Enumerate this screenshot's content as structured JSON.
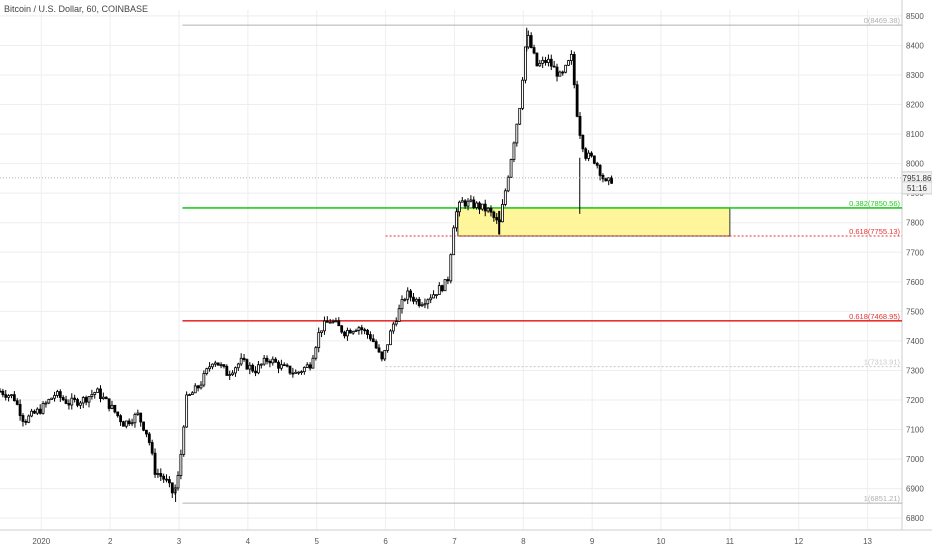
{
  "header": {
    "symbol_title": "Bitcoin / U.S. Dollar, 60, COINBASE"
  },
  "chart_data": {
    "type": "candlestick",
    "ylim": [
      6760,
      8520
    ],
    "y_ticks": [
      6800,
      6900,
      7000,
      7100,
      7200,
      7300,
      7400,
      7500,
      7600,
      7700,
      7800,
      7900,
      8000,
      8100,
      8200,
      8300,
      8400,
      8500
    ],
    "x_range": [
      0.4,
      13.5
    ],
    "x_ticks": [
      {
        "x": 1,
        "label": "2020"
      },
      {
        "x": 2,
        "label": "2"
      },
      {
        "x": 3,
        "label": "3"
      },
      {
        "x": 4,
        "label": "4"
      },
      {
        "x": 5,
        "label": "5"
      },
      {
        "x": 6,
        "label": "6"
      },
      {
        "x": 7,
        "label": "7"
      },
      {
        "x": 8,
        "label": "8"
      },
      {
        "x": 9,
        "label": "9"
      },
      {
        "x": 10,
        "label": "10"
      },
      {
        "x": 11,
        "label": "11"
      },
      {
        "x": 12,
        "label": "12"
      },
      {
        "x": 13,
        "label": "13"
      }
    ],
    "price_path": [
      [
        0.4,
        7230
      ],
      [
        0.6,
        7210
      ],
      [
        0.75,
        7130
      ],
      [
        1.0,
        7170
      ],
      [
        1.2,
        7220
      ],
      [
        1.4,
        7190
      ],
      [
        1.6,
        7200
      ],
      [
        1.8,
        7230
      ],
      [
        2.0,
        7180
      ],
      [
        2.2,
        7120
      ],
      [
        2.4,
        7150
      ],
      [
        2.55,
        7080
      ],
      [
        2.65,
        6960
      ],
      [
        2.8,
        6930
      ],
      [
        2.92,
        6880
      ],
      [
        3.0,
        6950
      ],
      [
        3.1,
        7200
      ],
      [
        3.3,
        7250
      ],
      [
        3.5,
        7340
      ],
      [
        3.7,
        7290
      ],
      [
        3.9,
        7330
      ],
      [
        4.1,
        7300
      ],
      [
        4.3,
        7340
      ],
      [
        4.5,
        7310
      ],
      [
        4.7,
        7290
      ],
      [
        4.9,
        7320
      ],
      [
        5.05,
        7440
      ],
      [
        5.2,
        7470
      ],
      [
        5.4,
        7430
      ],
      [
        5.6,
        7450
      ],
      [
        5.8,
        7410
      ],
      [
        5.95,
        7330
      ],
      [
        6.1,
        7450
      ],
      [
        6.3,
        7560
      ],
      [
        6.5,
        7530
      ],
      [
        6.7,
        7560
      ],
      [
        6.9,
        7600
      ],
      [
        7.0,
        7820
      ],
      [
        7.1,
        7870
      ],
      [
        7.3,
        7860
      ],
      [
        7.5,
        7840
      ],
      [
        7.65,
        7790
      ],
      [
        7.8,
        7990
      ],
      [
        7.95,
        8200
      ],
      [
        8.05,
        8440
      ],
      [
        8.2,
        8330
      ],
      [
        8.35,
        8350
      ],
      [
        8.55,
        8290
      ],
      [
        8.7,
        8360
      ],
      [
        8.8,
        8130
      ],
      [
        8.9,
        8030
      ],
      [
        9.05,
        8010
      ],
      [
        9.2,
        7930
      ],
      [
        9.3,
        7950
      ]
    ],
    "wick_extremes": {
      "high": 8460,
      "low": 6855,
      "spike_low": 7760,
      "spike_low_x": 7.65,
      "spike2_low": 7830,
      "spike2_low_x": 8.82
    },
    "fib_levels": [
      {
        "name": "top",
        "value": 8469,
        "label": "0(8469.38)",
        "color": "#b0b0b0",
        "x_start": 3.05,
        "x_end": 13.5,
        "style": "solid"
      },
      {
        "name": "fib-0382",
        "value": 7850,
        "label": "0.382(7850.56)",
        "color": "#22cc22",
        "x_start": 3.05,
        "x_end": 13.5,
        "style": "solid"
      },
      {
        "name": "fib-0618-upper",
        "value": 7755,
        "label": "0.618(7755.13)",
        "color": "#e63232",
        "x_start": 6.0,
        "x_end": 13.5,
        "style": "dotted"
      },
      {
        "name": "fib-0618-lower",
        "value": 7468,
        "label": "0.618(7468.95)",
        "color": "#e63232",
        "x_start": 3.05,
        "x_end": 13.5,
        "style": "solid"
      },
      {
        "name": "mid",
        "value": 7313,
        "label": "1(7313.91)",
        "color": "#c8c8c8",
        "x_start": 6.0,
        "x_end": 13.5,
        "style": "dotted"
      },
      {
        "name": "bottom",
        "value": 6851,
        "label": "1(6851.21)",
        "color": "#b0b0b0",
        "x_start": 3.05,
        "x_end": 13.5,
        "style": "solid"
      }
    ],
    "zone": {
      "x_start": 7.05,
      "x_end": 11.0,
      "y_low": 7755,
      "y_high": 7850,
      "fill": "#fff59a",
      "stroke": "#333333"
    },
    "current_price": {
      "value": 7951.86,
      "label": "7951.86",
      "countdown": "51:16",
      "countdown_value": 7918
    },
    "colors": {
      "up": "#ffffff",
      "down": "#000000",
      "wick": "#000000",
      "grid": "#eeeeee"
    }
  }
}
